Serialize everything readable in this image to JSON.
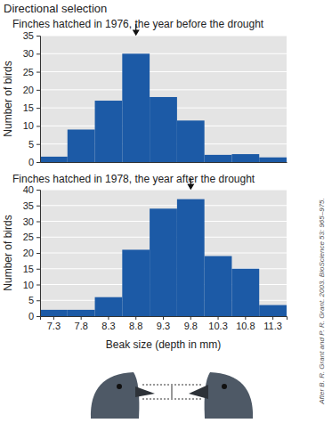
{
  "chart_data": [
    {
      "type": "bar",
      "title": "Directional selection",
      "subtitle": "Finches hatched in 1976, the year before the drought",
      "y_label": "Number of birds",
      "categories": [
        "7.3",
        "7.8",
        "8.3",
        "8.8",
        "9.3",
        "9.8",
        "10.3",
        "10.8",
        "11.3"
      ],
      "values": [
        1.5,
        9,
        17,
        30,
        18,
        11.5,
        2,
        2.2,
        1.3
      ],
      "color": "#1c5aa6",
      "ylim": [
        0,
        35
      ],
      "yticks": [
        0,
        5,
        10,
        15,
        20,
        25,
        30,
        35
      ],
      "grid": true,
      "tick_labels": "y",
      "arrow_at": 8.8
    },
    {
      "type": "bar",
      "subtitle": "Finches hatched in 1978, the year after the drought",
      "y_label": "Number of birds",
      "x_label": "Beak size (depth in mm)",
      "annotation": "After B. R. Grant and P. R. Grant. 2003. BioScience 53: 965–975.",
      "categories": [
        "7.3",
        "7.8",
        "8.3",
        "8.8",
        "9.3",
        "9.8",
        "10.3",
        "10.8",
        "11.3"
      ],
      "values": [
        2,
        2,
        6,
        21,
        34,
        37,
        19,
        15,
        3.5
      ],
      "color": "#1c5aa6",
      "ylim": [
        0,
        40
      ],
      "yticks": [
        0,
        5,
        10,
        15,
        20,
        25,
        30,
        35,
        40
      ],
      "grid": true,
      "arrow_at": 9.8
    }
  ]
}
